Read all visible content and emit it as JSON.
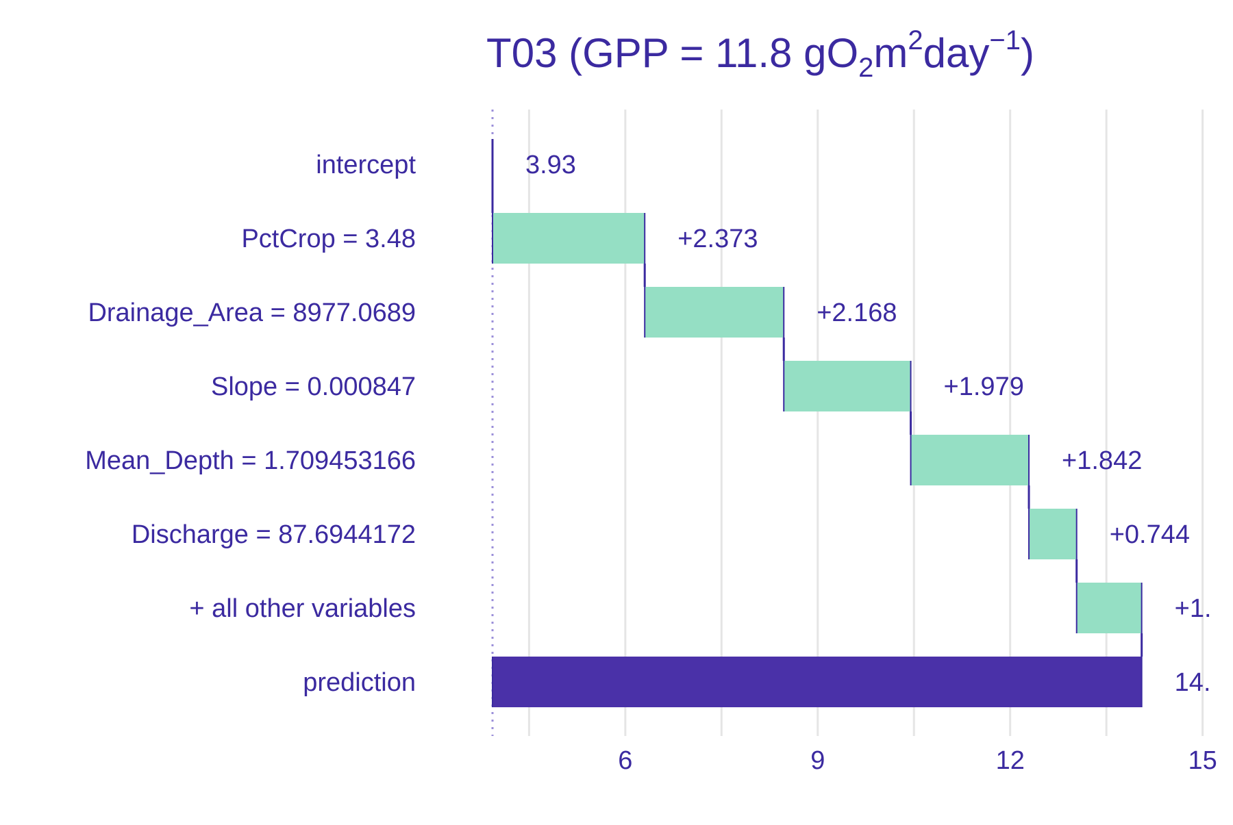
{
  "chart_data": {
    "type": "waterfall",
    "title": {
      "main": "T03 (GPP = 11.8 gO",
      "sub1": "2",
      "mid": "m",
      "sup1": "2",
      "end": "day",
      "sup2": "−1",
      "close": ")"
    },
    "rows": [
      {
        "label": "intercept",
        "start": 3.93,
        "end": 3.93,
        "value_label": "3.93",
        "kind": "intercept"
      },
      {
        "label": "PctCrop = 3.48",
        "start": 3.93,
        "end": 6.303,
        "value_label": "+2.373",
        "kind": "contribution"
      },
      {
        "label": "Drainage_Area = 8977.0689",
        "start": 6.303,
        "end": 8.471,
        "value_label": "+2.168",
        "kind": "contribution"
      },
      {
        "label": "Slope = 0.000847",
        "start": 8.471,
        "end": 10.45,
        "value_label": "+1.979",
        "kind": "contribution"
      },
      {
        "label": "Mean_Depth = 1.709453166",
        "start": 10.45,
        "end": 12.292,
        "value_label": "+1.842",
        "kind": "contribution"
      },
      {
        "label": "Discharge = 87.6944172",
        "start": 12.292,
        "end": 13.036,
        "value_label": "+0.744",
        "kind": "contribution"
      },
      {
        "label": "+ all other variables",
        "start": 13.036,
        "end": 14.05,
        "value_label": "+1.",
        "kind": "contribution"
      },
      {
        "label": "prediction",
        "start": 3.93,
        "end": 14.05,
        "value_label": "14.",
        "kind": "prediction"
      }
    ],
    "x_ticks": [
      6,
      9,
      12,
      15
    ],
    "x_minor_ticks": [
      4.5,
      7.5,
      10.5,
      13.5
    ],
    "xlim": [
      3.3,
      15.1
    ],
    "baseline": 3.93,
    "grid": true,
    "colors": {
      "text": "#3b2aa0",
      "contribution": "#95dfc4",
      "prediction": "#4a31a8",
      "connector": "#3b2aa0",
      "grid": "#e5e5e5",
      "baseline": "#9b8fd9"
    }
  }
}
